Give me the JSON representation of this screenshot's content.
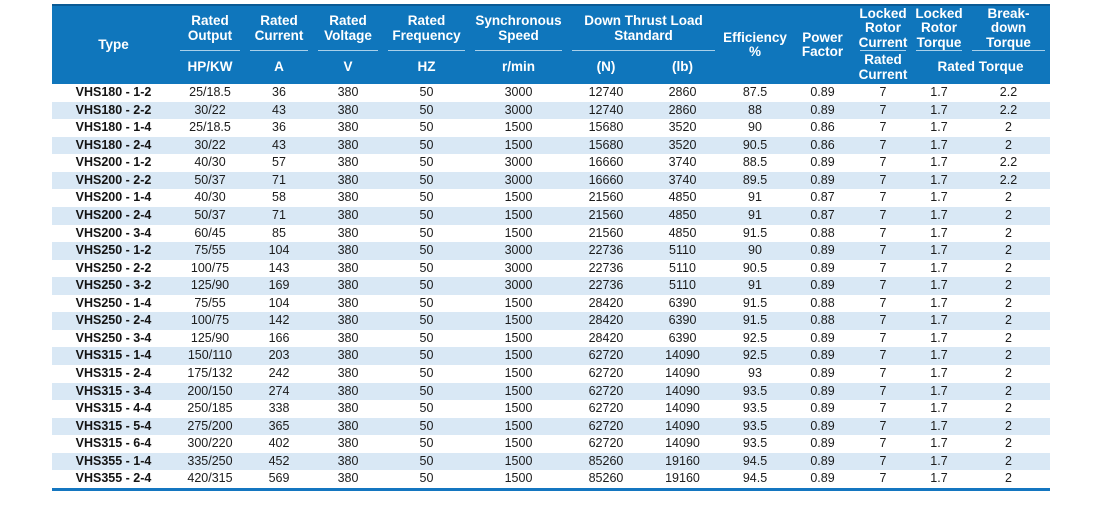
{
  "colors": {
    "header_bg": "#0f76bc",
    "header_top_edge": "#0a5a94",
    "header_divider": "#a9d0ea",
    "row_alt": "#d9e8f5",
    "bottom_line": "#1476c0",
    "body_text": "#1c1c1c"
  },
  "table": {
    "header": {
      "type": "Type",
      "groups": {
        "rated_output": "Rated\nOutput",
        "rated_current": "Rated\nCurrent",
        "rated_voltage": "Rated\nVoltage",
        "rated_frequency": "Rated\nFrequency",
        "synchronous_speed": "Synchronous\nSpeed",
        "down_thrust": "Down Thrust Load\nStandard",
        "efficiency": "Efficiency\n%",
        "power_factor": "Power\nFactor",
        "locked_rotor_current": "Locked\nRotor\nCurrent",
        "locked_rotor_torque": "Locked\nRotor\nTorque",
        "breakdown_torque": "Break-\ndown\nTorque"
      },
      "units": {
        "output": "HP/KW",
        "current": "A",
        "voltage": "V",
        "frequency": "HZ",
        "speed": "r/min",
        "thrust_n": "(N)",
        "thrust_lb": "(lb)",
        "locked_rotor_rated_current": "Rated\nCurrent",
        "rated_torque": "Rated Torque"
      }
    },
    "rows": [
      [
        "VHS180 - 1-2",
        "25/18.5",
        "36",
        "380",
        "50",
        "3000",
        "12740",
        "2860",
        "87.5",
        "0.89",
        "7",
        "1.7",
        "2.2"
      ],
      [
        "VHS180 - 2-2",
        "30/22",
        "43",
        "380",
        "50",
        "3000",
        "12740",
        "2860",
        "88",
        "0.89",
        "7",
        "1.7",
        "2.2"
      ],
      [
        "VHS180 - 1-4",
        "25/18.5",
        "36",
        "380",
        "50",
        "1500",
        "15680",
        "3520",
        "90",
        "0.86",
        "7",
        "1.7",
        "2"
      ],
      [
        "VHS180 - 2-4",
        "30/22",
        "43",
        "380",
        "50",
        "1500",
        "15680",
        "3520",
        "90.5",
        "0.86",
        "7",
        "1.7",
        "2"
      ],
      [
        "VHS200 - 1-2",
        "40/30",
        "57",
        "380",
        "50",
        "3000",
        "16660",
        "3740",
        "88.5",
        "0.89",
        "7",
        "1.7",
        "2.2"
      ],
      [
        "VHS200 - 2-2",
        "50/37",
        "71",
        "380",
        "50",
        "3000",
        "16660",
        "3740",
        "89.5",
        "0.89",
        "7",
        "1.7",
        "2.2"
      ],
      [
        "VHS200 - 1-4",
        "40/30",
        "58",
        "380",
        "50",
        "1500",
        "21560",
        "4850",
        "91",
        "0.87",
        "7",
        "1.7",
        "2"
      ],
      [
        "VHS200 - 2-4",
        "50/37",
        "71",
        "380",
        "50",
        "1500",
        "21560",
        "4850",
        "91",
        "0.87",
        "7",
        "1.7",
        "2"
      ],
      [
        "VHS200 - 3-4",
        "60/45",
        "85",
        "380",
        "50",
        "1500",
        "21560",
        "4850",
        "91.5",
        "0.88",
        "7",
        "1.7",
        "2"
      ],
      [
        "VHS250 - 1-2",
        "75/55",
        "104",
        "380",
        "50",
        "3000",
        "22736",
        "5110",
        "90",
        "0.89",
        "7",
        "1.7",
        "2"
      ],
      [
        "VHS250 - 2-2",
        "100/75",
        "143",
        "380",
        "50",
        "3000",
        "22736",
        "5110",
        "90.5",
        "0.89",
        "7",
        "1.7",
        "2"
      ],
      [
        "VHS250 - 3-2",
        "125/90",
        "169",
        "380",
        "50",
        "3000",
        "22736",
        "5110",
        "91",
        "0.89",
        "7",
        "1.7",
        "2"
      ],
      [
        "VHS250 - 1-4",
        "75/55",
        "104",
        "380",
        "50",
        "1500",
        "28420",
        "6390",
        "91.5",
        "0.88",
        "7",
        "1.7",
        "2"
      ],
      [
        "VHS250 - 2-4",
        "100/75",
        "142",
        "380",
        "50",
        "1500",
        "28420",
        "6390",
        "91.5",
        "0.88",
        "7",
        "1.7",
        "2"
      ],
      [
        "VHS250 - 3-4",
        "125/90",
        "166",
        "380",
        "50",
        "1500",
        "28420",
        "6390",
        "92.5",
        "0.89",
        "7",
        "1.7",
        "2"
      ],
      [
        "VHS315 - 1-4",
        "150/110",
        "203",
        "380",
        "50",
        "1500",
        "62720",
        "14090",
        "92.5",
        "0.89",
        "7",
        "1.7",
        "2"
      ],
      [
        "VHS315 - 2-4",
        "175/132",
        "242",
        "380",
        "50",
        "1500",
        "62720",
        "14090",
        "93",
        "0.89",
        "7",
        "1.7",
        "2"
      ],
      [
        "VHS315 - 3-4",
        "200/150",
        "274",
        "380",
        "50",
        "1500",
        "62720",
        "14090",
        "93.5",
        "0.89",
        "7",
        "1.7",
        "2"
      ],
      [
        "VHS315 - 4-4",
        "250/185",
        "338",
        "380",
        "50",
        "1500",
        "62720",
        "14090",
        "93.5",
        "0.89",
        "7",
        "1.7",
        "2"
      ],
      [
        "VHS315 - 5-4",
        "275/200",
        "365",
        "380",
        "50",
        "1500",
        "62720",
        "14090",
        "93.5",
        "0.89",
        "7",
        "1.7",
        "2"
      ],
      [
        "VHS315 - 6-4",
        "300/220",
        "402",
        "380",
        "50",
        "1500",
        "62720",
        "14090",
        "93.5",
        "0.89",
        "7",
        "1.7",
        "2"
      ],
      [
        "VHS355 - 1-4",
        "335/250",
        "452",
        "380",
        "50",
        "1500",
        "85260",
        "19160",
        "94.5",
        "0.89",
        "7",
        "1.7",
        "2"
      ],
      [
        "VHS355 - 2-4",
        "420/315",
        "569",
        "380",
        "50",
        "1500",
        "85260",
        "19160",
        "94.5",
        "0.89",
        "7",
        "1.7",
        "2"
      ]
    ]
  }
}
